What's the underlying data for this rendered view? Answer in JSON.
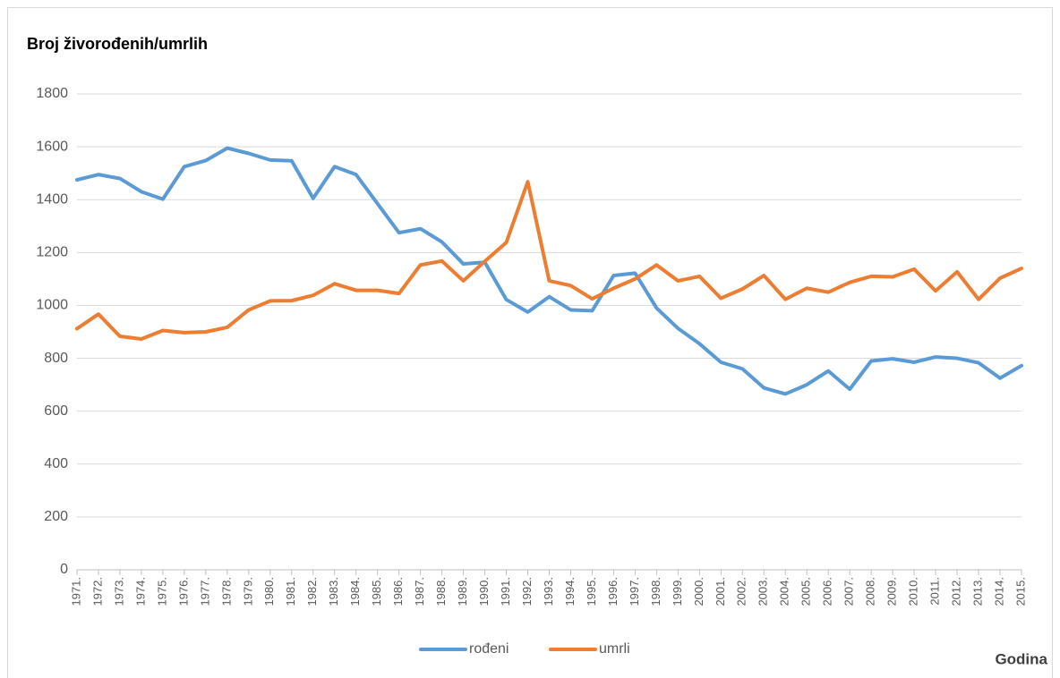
{
  "chart_data": {
    "type": "line",
    "title": "Broj živorođenih/umrlih",
    "x_label": "Godina",
    "categories": [
      "1971.",
      "1972.",
      "1973.",
      "1974.",
      "1975.",
      "1976.",
      "1977.",
      "1978.",
      "1979.",
      "1980.",
      "1981.",
      "1982.",
      "1983.",
      "1984.",
      "1985.",
      "1986.",
      "1987.",
      "1988.",
      "1989.",
      "1990.",
      "1991.",
      "1992.",
      "1993.",
      "1994.",
      "1995.",
      "1996.",
      "1997.",
      "1998.",
      "1999.",
      "2000.",
      "2001.",
      "2002.",
      "2003.",
      "2004.",
      "2005.",
      "2006.",
      "2007.",
      "2008.",
      "2009.",
      "2010.",
      "2011.",
      "2012.",
      "2013.",
      "2014.",
      "2015."
    ],
    "series": [
      {
        "name": "rođeni",
        "color": "#5b9bd5",
        "values": [
          1475,
          1495,
          1480,
          1430,
          1402,
          1525,
          1548,
          1595,
          1575,
          1550,
          1547,
          1405,
          1525,
          1495,
          1385,
          1275,
          1290,
          1240,
          1157,
          1163,
          1022,
          975,
          1033,
          983,
          980,
          1113,
          1122,
          990,
          913,
          855,
          785,
          760,
          688,
          665,
          700,
          752,
          683,
          790,
          798,
          785,
          805,
          800,
          783,
          725,
          772
        ]
      },
      {
        "name": "umrli",
        "color": "#ed7d31",
        "values": [
          912,
          967,
          883,
          873,
          905,
          897,
          900,
          917,
          983,
          1017,
          1018,
          1038,
          1082,
          1057,
          1057,
          1045,
          1153,
          1168,
          1093,
          1167,
          1238,
          1468,
          1093,
          1075,
          1025,
          1065,
          1100,
          1153,
          1093,
          1110,
          1027,
          1062,
          1113,
          1023,
          1065,
          1050,
          1087,
          1110,
          1108,
          1137,
          1055,
          1127,
          1023,
          1103,
          1140
        ]
      }
    ],
    "ylim": [
      0,
      1800
    ],
    "yticks": [
      0,
      200,
      400,
      600,
      800,
      1000,
      1200,
      1400,
      1600,
      1800
    ],
    "grid": true,
    "legend": "bottom"
  }
}
